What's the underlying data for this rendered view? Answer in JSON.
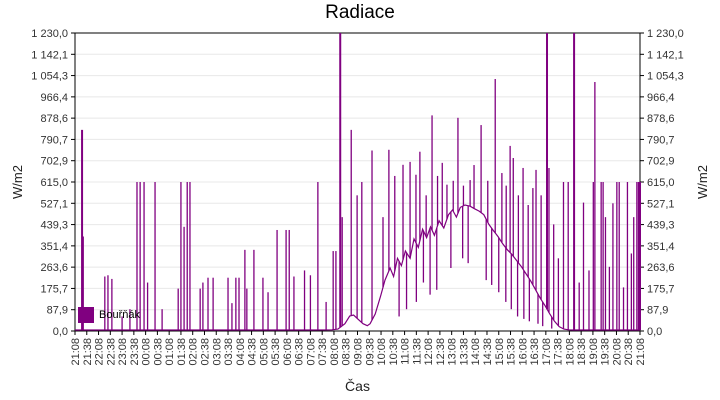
{
  "chart_data": {
    "type": "line",
    "title": "Radiace",
    "xlabel": "Čas",
    "ylabel": "W/m2",
    "ylabel_right": "W/m2",
    "series_name": "Bouřňák",
    "series_color": "#800080",
    "grid": "horizontal",
    "grid_color": "#e8e8e8",
    "axis_color": "#000000",
    "tick_label_color": "#333333",
    "legend_position": "bottom-left-inside",
    "ylim": [
      0,
      1230
    ],
    "x_minutes_total": 1440,
    "y_ticks": [
      0.0,
      87.9,
      175.7,
      263.6,
      351.4,
      439.3,
      527.1,
      615.0,
      702.9,
      790.7,
      878.6,
      966.4,
      1054.3,
      1142.1,
      1230.0
    ],
    "y_tick_labels": [
      "0,0",
      "87,9",
      "175,7",
      "263,6",
      "351,4",
      "439,3",
      "527,1",
      "615,0",
      "702,9",
      "790,7",
      "878,6",
      "966,4",
      "1 054,3",
      "1 142,1",
      "1 230,0"
    ],
    "x_tick_labels": [
      "21:08",
      "21:38",
      "22:08",
      "22:38",
      "23:08",
      "23:38",
      "00:08",
      "00:38",
      "01:08",
      "01:38",
      "02:08",
      "02:38",
      "03:08",
      "03:38",
      "04:08",
      "04:38",
      "05:08",
      "05:38",
      "06:08",
      "06:38",
      "07:08",
      "07:38",
      "08:08",
      "08:38",
      "09:08",
      "09:38",
      "10:08",
      "10:38",
      "11:08",
      "11:38",
      "12:08",
      "12:38",
      "13:08",
      "13:38",
      "14:08",
      "14:38",
      "15:08",
      "15:38",
      "16:08",
      "16:38",
      "17:08",
      "17:38",
      "18:08",
      "18:38",
      "19:08",
      "19:38",
      "20:08",
      "20:38",
      "21:08"
    ],
    "baseline_points": [
      [
        0,
        4
      ],
      [
        60,
        4
      ],
      [
        120,
        4
      ],
      [
        180,
        4
      ],
      [
        240,
        4
      ],
      [
        300,
        4
      ],
      [
        360,
        4
      ],
      [
        420,
        4
      ],
      [
        480,
        4
      ],
      [
        540,
        4
      ],
      [
        600,
        4
      ],
      [
        655,
        5
      ],
      [
        670,
        8
      ],
      [
        688,
        30
      ],
      [
        700,
        62
      ],
      [
        710,
        66
      ],
      [
        722,
        48
      ],
      [
        734,
        30
      ],
      [
        745,
        22
      ],
      [
        752,
        30
      ],
      [
        765,
        70
      ],
      [
        778,
        140
      ],
      [
        790,
        210
      ],
      [
        803,
        260
      ],
      [
        812,
        225
      ],
      [
        822,
        300
      ],
      [
        832,
        270
      ],
      [
        842,
        330
      ],
      [
        854,
        300
      ],
      [
        864,
        380
      ],
      [
        875,
        345
      ],
      [
        886,
        420
      ],
      [
        896,
        385
      ],
      [
        906,
        430
      ],
      [
        916,
        395
      ],
      [
        928,
        455
      ],
      [
        940,
        425
      ],
      [
        952,
        480
      ],
      [
        962,
        500
      ],
      [
        972,
        470
      ],
      [
        982,
        510
      ],
      [
        994,
        520
      ],
      [
        1007,
        515
      ],
      [
        1018,
        505
      ],
      [
        1030,
        495
      ],
      [
        1042,
        480
      ],
      [
        1055,
        440
      ],
      [
        1066,
        415
      ],
      [
        1078,
        390
      ],
      [
        1090,
        360
      ],
      [
        1102,
        335
      ],
      [
        1114,
        315
      ],
      [
        1126,
        290
      ],
      [
        1138,
        265
      ],
      [
        1150,
        235
      ],
      [
        1162,
        205
      ],
      [
        1174,
        170
      ],
      [
        1186,
        135
      ],
      [
        1198,
        105
      ],
      [
        1210,
        70
      ],
      [
        1222,
        40
      ],
      [
        1234,
        18
      ],
      [
        1246,
        8
      ],
      [
        1258,
        5
      ],
      [
        1270,
        4
      ],
      [
        1300,
        4
      ],
      [
        1340,
        4
      ],
      [
        1380,
        4
      ],
      [
        1420,
        4
      ],
      [
        1440,
        4
      ]
    ],
    "spike_points": [
      [
        18,
        830,
        2
      ],
      [
        21,
        390
      ],
      [
        76,
        225
      ],
      [
        84,
        230
      ],
      [
        94,
        215
      ],
      [
        120,
        60
      ],
      [
        140,
        90
      ],
      [
        158,
        615
      ],
      [
        166,
        615
      ],
      [
        176,
        615
      ],
      [
        185,
        200
      ],
      [
        204,
        615
      ],
      [
        222,
        90
      ],
      [
        263,
        175
      ],
      [
        270,
        615
      ],
      [
        278,
        430
      ],
      [
        286,
        615
      ],
      [
        293,
        615
      ],
      [
        319,
        175
      ],
      [
        326,
        200
      ],
      [
        339,
        220
      ],
      [
        352,
        220
      ],
      [
        390,
        220
      ],
      [
        400,
        115
      ],
      [
        410,
        220
      ],
      [
        418,
        220
      ],
      [
        433,
        335
      ],
      [
        438,
        175
      ],
      [
        456,
        335
      ],
      [
        479,
        220
      ],
      [
        492,
        160
      ],
      [
        515,
        417
      ],
      [
        538,
        417
      ],
      [
        546,
        417
      ],
      [
        558,
        225
      ],
      [
        585,
        250
      ],
      [
        600,
        230
      ],
      [
        619,
        615
      ],
      [
        640,
        120
      ],
      [
        658,
        330
      ],
      [
        665,
        330
      ],
      [
        676,
        1230,
        2
      ],
      [
        681,
        470
      ],
      [
        704,
        830
      ],
      [
        719,
        560
      ],
      [
        731,
        615
      ],
      [
        757,
        745
      ],
      [
        785,
        470
      ],
      [
        800,
        748
      ],
      [
        815,
        640
      ],
      [
        826,
        60
      ],
      [
        836,
        686
      ],
      [
        845,
        90
      ],
      [
        854,
        698
      ],
      [
        869,
        645
      ],
      [
        870,
        120
      ],
      [
        879,
        740
      ],
      [
        888,
        200
      ],
      [
        895,
        560
      ],
      [
        905,
        150
      ],
      [
        910,
        890
      ],
      [
        922,
        170
      ],
      [
        924,
        640
      ],
      [
        936,
        694
      ],
      [
        948,
        604
      ],
      [
        958,
        260
      ],
      [
        964,
        620
      ],
      [
        976,
        880
      ],
      [
        988,
        300
      ],
      [
        990,
        600
      ],
      [
        1002,
        280
      ],
      [
        1007,
        623
      ],
      [
        1017,
        685
      ],
      [
        1035,
        850
      ],
      [
        1048,
        210
      ],
      [
        1052,
        620
      ],
      [
        1062,
        190
      ],
      [
        1071,
        1040
      ],
      [
        1080,
        160
      ],
      [
        1088,
        652
      ],
      [
        1098,
        120
      ],
      [
        1099,
        600
      ],
      [
        1109,
        764
      ],
      [
        1112,
        90
      ],
      [
        1117,
        714
      ],
      [
        1128,
        60
      ],
      [
        1130,
        560
      ],
      [
        1142,
        673
      ],
      [
        1144,
        50
      ],
      [
        1155,
        520
      ],
      [
        1158,
        40
      ],
      [
        1167,
        590
      ],
      [
        1175,
        665
      ],
      [
        1180,
        30
      ],
      [
        1188,
        560
      ],
      [
        1192,
        20
      ],
      [
        1203,
        1230,
        2
      ],
      [
        1208,
        673
      ],
      [
        1215,
        10
      ],
      [
        1220,
        440
      ],
      [
        1232,
        300
      ],
      [
        1245,
        615
      ],
      [
        1257,
        615
      ],
      [
        1272,
        1230,
        2
      ],
      [
        1285,
        200
      ],
      [
        1296,
        530
      ],
      [
        1310,
        250
      ],
      [
        1321,
        615
      ],
      [
        1325,
        1028
      ],
      [
        1341,
        615
      ],
      [
        1346,
        615
      ],
      [
        1352,
        470
      ],
      [
        1362,
        265
      ],
      [
        1371,
        527
      ],
      [
        1381,
        615
      ],
      [
        1387,
        615
      ],
      [
        1398,
        180
      ],
      [
        1408,
        615
      ],
      [
        1418,
        320
      ],
      [
        1424,
        470
      ],
      [
        1432,
        615
      ],
      [
        1437,
        615,
        2
      ],
      [
        1440,
        615,
        2
      ]
    ]
  }
}
